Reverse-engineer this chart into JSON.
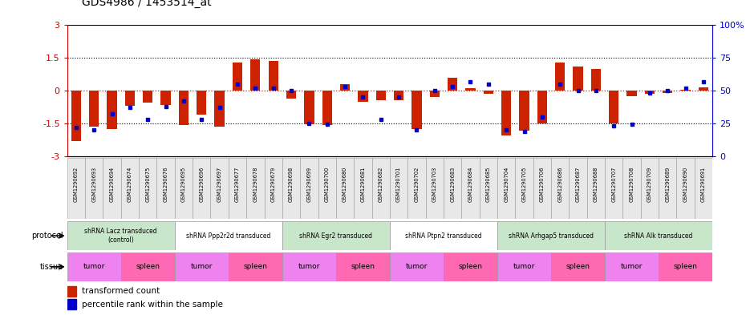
{
  "title": "GDS4986 / 1453514_at",
  "samples": [
    "GSM1290692",
    "GSM1290693",
    "GSM1290694",
    "GSM1290674",
    "GSM1290675",
    "GSM1290676",
    "GSM1290695",
    "GSM1290696",
    "GSM1290697",
    "GSM1290677",
    "GSM1290678",
    "GSM1290679",
    "GSM1290698",
    "GSM1290699",
    "GSM1290700",
    "GSM1290680",
    "GSM1290681",
    "GSM1290682",
    "GSM1290701",
    "GSM1290702",
    "GSM1290703",
    "GSM1290683",
    "GSM1290684",
    "GSM1290685",
    "GSM1290704",
    "GSM1290705",
    "GSM1290706",
    "GSM1290686",
    "GSM1290687",
    "GSM1290688",
    "GSM1290707",
    "GSM1290708",
    "GSM1290709",
    "GSM1290689",
    "GSM1290690",
    "GSM1290691"
  ],
  "red_values": [
    -2.3,
    -1.65,
    -1.75,
    -0.7,
    -0.55,
    -0.65,
    -1.6,
    -1.1,
    -1.65,
    1.3,
    1.45,
    1.35,
    -0.35,
    -1.55,
    -1.6,
    0.3,
    -0.5,
    -0.45,
    -0.45,
    -1.75,
    -0.3,
    0.6,
    0.1,
    -0.15,
    -2.05,
    -1.85,
    -1.5,
    1.3,
    1.1,
    1.0,
    -1.5,
    -0.25,
    -0.15,
    -0.1,
    0.05,
    0.15
  ],
  "blue_values": [
    22,
    20,
    32,
    37,
    28,
    38,
    42,
    28,
    37,
    55,
    52,
    52,
    50,
    25,
    24,
    53,
    45,
    28,
    45,
    20,
    50,
    53,
    57,
    55,
    20,
    19,
    30,
    55,
    50,
    50,
    23,
    24,
    48,
    50,
    52,
    57
  ],
  "protocols": [
    {
      "label": "shRNA Lacz transduced\n(control)",
      "start": 0,
      "end": 6,
      "color": "#c8e6c9"
    },
    {
      "label": "shRNA Ppp2r2d transduced",
      "start": 6,
      "end": 12,
      "color": "#ffffff"
    },
    {
      "label": "shRNA Egr2 transduced",
      "start": 12,
      "end": 18,
      "color": "#c8e6c9"
    },
    {
      "label": "shRNA Ptpn2 transduced",
      "start": 18,
      "end": 24,
      "color": "#ffffff"
    },
    {
      "label": "shRNA Arhgap5 transduced",
      "start": 24,
      "end": 30,
      "color": "#c8e6c9"
    },
    {
      "label": "shRNA Alk transduced",
      "start": 30,
      "end": 36,
      "color": "#c8e6c9"
    }
  ],
  "tissues": [
    {
      "label": "tumor",
      "start": 0,
      "end": 3,
      "color": "#ee82ee"
    },
    {
      "label": "spleen",
      "start": 3,
      "end": 6,
      "color": "#ff69b4"
    },
    {
      "label": "tumor",
      "start": 6,
      "end": 9,
      "color": "#ee82ee"
    },
    {
      "label": "spleen",
      "start": 9,
      "end": 12,
      "color": "#ff69b4"
    },
    {
      "label": "tumor",
      "start": 12,
      "end": 15,
      "color": "#ee82ee"
    },
    {
      "label": "spleen",
      "start": 15,
      "end": 18,
      "color": "#ff69b4"
    },
    {
      "label": "tumor",
      "start": 18,
      "end": 21,
      "color": "#ee82ee"
    },
    {
      "label": "spleen",
      "start": 21,
      "end": 24,
      "color": "#ff69b4"
    },
    {
      "label": "tumor",
      "start": 24,
      "end": 27,
      "color": "#ee82ee"
    },
    {
      "label": "spleen",
      "start": 27,
      "end": 30,
      "color": "#ff69b4"
    },
    {
      "label": "tumor",
      "start": 30,
      "end": 33,
      "color": "#ee82ee"
    },
    {
      "label": "spleen",
      "start": 33,
      "end": 36,
      "color": "#ff69b4"
    }
  ],
  "ylim_left": [
    -3,
    3
  ],
  "ylim_right": [
    0,
    100
  ],
  "yticks_left": [
    -3,
    -1.5,
    0,
    1.5,
    3
  ],
  "yticks_right": [
    0,
    25,
    50,
    75,
    100
  ],
  "ytick_labels_right": [
    "0",
    "25",
    "50",
    "75",
    "100%"
  ],
  "bar_color": "#cc2200",
  "dot_color": "#0000cc",
  "background_color": "#ffffff",
  "label_color_left": "#cc0000",
  "label_color_right": "#0000cc"
}
